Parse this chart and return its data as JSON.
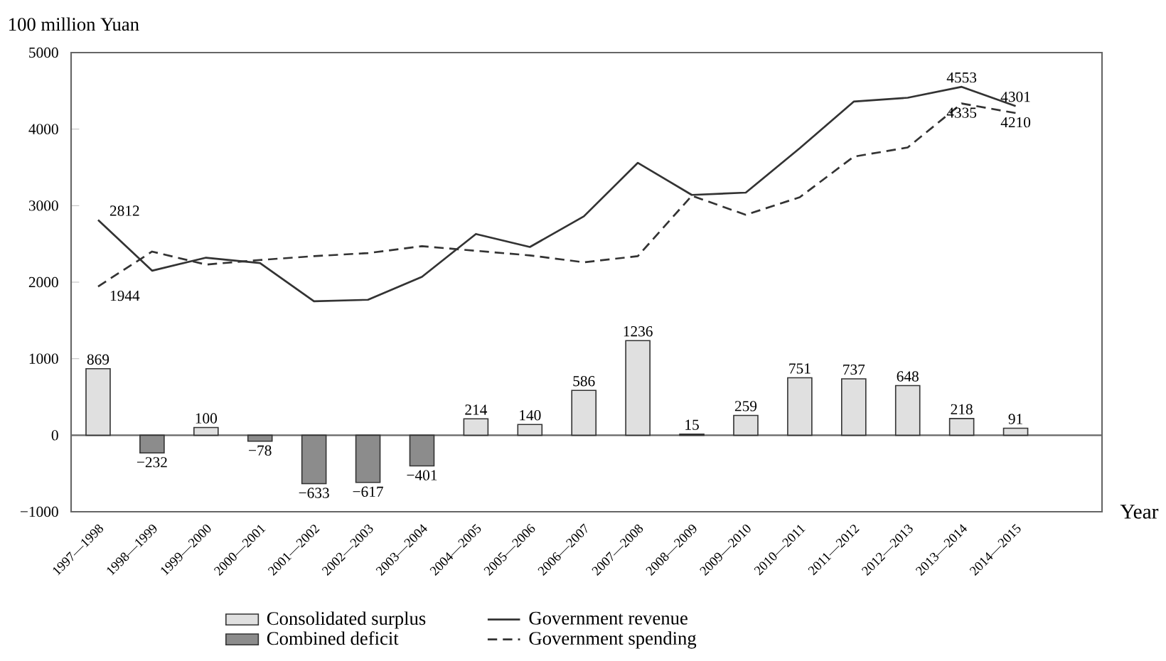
{
  "chart_data": {
    "type": "bar",
    "ylabel": "100 million Yuan",
    "xlabel": "Year",
    "categories": [
      "1997—1998",
      "1998—1999",
      "1999—2000",
      "2000—2001",
      "2001—2002",
      "2002—2003",
      "2003—2004",
      "2004—2005",
      "2005—2006",
      "2006—2007",
      "2007—2008",
      "2008—2009",
      "2009—2010",
      "2010—2011",
      "2011—2012",
      "2012—2013",
      "2013—2014",
      "2014—2015"
    ],
    "ylim": [
      -1000,
      5000
    ],
    "yticks": [
      {
        "value": -1000,
        "label": "−1000"
      },
      0,
      1000,
      2000,
      3000,
      4000,
      5000
    ],
    "legend": "bottom",
    "marker": "none",
    "ref_lines": [
      {
        "axis": "y",
        "value": 0,
        "color": "#666666"
      }
    ],
    "series": [
      {
        "name": "Consolidated surplus",
        "color": "#e0e0e0",
        "values": [
          869,
          null,
          100,
          null,
          null,
          null,
          null,
          214,
          140,
          586,
          1236,
          15,
          259,
          751,
          737,
          648,
          218,
          91
        ],
        "value_labels": [
          "869",
          null,
          "100",
          null,
          null,
          null,
          null,
          "214",
          "140",
          "586",
          "1236",
          "15",
          "259",
          "751",
          "737",
          "648",
          "218",
          "91"
        ]
      },
      {
        "name": "Combined deficit",
        "color": "#8c8c8c",
        "values": [
          null,
          -232,
          null,
          -78,
          -633,
          -617,
          -401,
          null,
          null,
          null,
          null,
          null,
          null,
          null,
          null,
          null,
          null,
          null
        ],
        "value_labels": [
          null,
          "−232",
          null,
          "−78",
          "−633",
          "−617",
          "−401",
          null,
          null,
          null,
          null,
          null,
          null,
          null,
          null,
          null,
          null,
          null
        ]
      },
      {
        "name": "Government revenue",
        "type": "line",
        "color": "#333333",
        "line_style": "solid",
        "values": [
          2812,
          2150,
          2320,
          2250,
          1750,
          1770,
          2070,
          2630,
          2460,
          2860,
          3560,
          3140,
          3170,
          3750,
          4360,
          4410,
          4553,
          4301
        ],
        "value_labels": [
          "2812",
          null,
          null,
          null,
          null,
          null,
          null,
          null,
          null,
          null,
          null,
          null,
          null,
          null,
          null,
          null,
          "4553",
          "4301"
        ]
      },
      {
        "name": "Government spending",
        "type": "line",
        "color": "#333333",
        "line_style": "dashed",
        "values": [
          1944,
          2400,
          2230,
          2290,
          2340,
          2380,
          2470,
          2410,
          2350,
          2260,
          2340,
          3130,
          2880,
          3110,
          3640,
          3760,
          4335,
          4210
        ],
        "value_labels": [
          "1944",
          null,
          null,
          null,
          null,
          null,
          null,
          null,
          null,
          null,
          null,
          null,
          null,
          null,
          null,
          null,
          "4335",
          "4210"
        ]
      }
    ]
  }
}
